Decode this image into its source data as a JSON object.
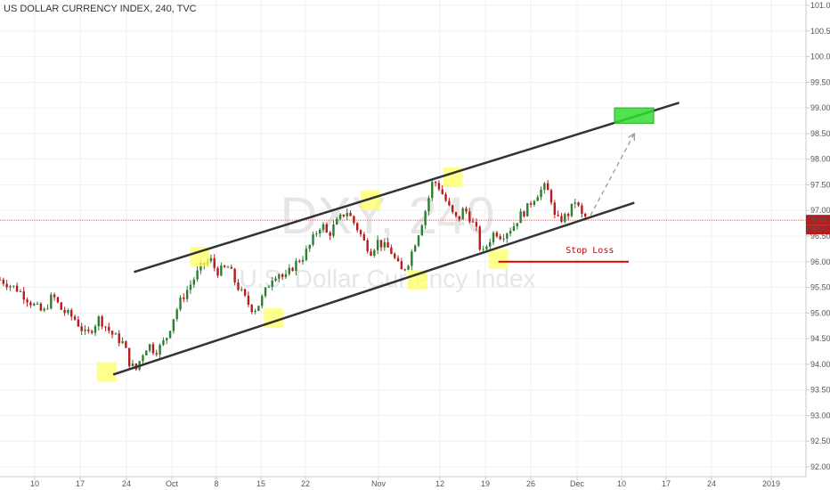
{
  "header": {
    "title": "US DOLLAR CURRENCY INDEX, 240, TVC"
  },
  "watermark": {
    "symbol": "DXY, 240",
    "name": "U.S. Dollar Currency Index"
  },
  "price_labels": {
    "current": "96.81",
    "countdown": "03:57:36"
  },
  "annotations": {
    "stop_loss": "Stop Loss"
  },
  "colors": {
    "up_candle": "#2e7d32",
    "down_candle": "#b71c1c",
    "channel": "#333333",
    "highlight": "#ffff66",
    "target": "#33dd33",
    "stop_loss": "#e00000",
    "price_line": "#e06060"
  },
  "chart_data": {
    "type": "candlestick",
    "y_axis": {
      "min": 92.0,
      "max": 101.0,
      "ticks": [
        "92.00",
        "92.50",
        "93.00",
        "93.50",
        "94.00",
        "94.50",
        "95.00",
        "95.50",
        "96.00",
        "96.50",
        "97.00",
        "97.50",
        "98.00",
        "98.50",
        "99.00",
        "99.50",
        "100.00",
        "100.50",
        "101.00"
      ]
    },
    "x_axis": {
      "ticks": [
        "10",
        "17",
        "24",
        "Oct",
        "8",
        "15",
        "22",
        "Nov",
        "12",
        "19",
        "26",
        "Dec",
        "10",
        "17",
        "24",
        "2019"
      ]
    },
    "series": [
      {
        "close_path": [
          [
            0,
            95.65
          ],
          [
            3,
            95.45
          ],
          [
            5,
            95.2
          ],
          [
            7,
            95.0
          ],
          [
            8.5,
            95.35
          ],
          [
            10,
            95.05
          ],
          [
            12,
            94.9
          ],
          [
            14,
            94.55
          ],
          [
            16,
            94.9
          ],
          [
            18,
            94.6
          ],
          [
            20,
            94.4
          ],
          [
            21,
            94.0
          ],
          [
            22,
            93.9
          ],
          [
            23,
            94.2
          ],
          [
            24,
            94.4
          ],
          [
            25,
            94.25
          ],
          [
            26,
            94.35
          ],
          [
            27,
            94.55
          ],
          [
            28,
            94.9
          ],
          [
            29,
            95.2
          ],
          [
            30,
            95.4
          ],
          [
            31,
            95.6
          ],
          [
            32.5,
            95.9
          ],
          [
            34,
            96.05
          ],
          [
            35,
            95.8
          ],
          [
            36,
            95.85
          ],
          [
            37,
            95.9
          ],
          [
            38,
            95.6
          ],
          [
            39,
            95.4
          ],
          [
            40,
            95.2
          ],
          [
            41,
            95.05
          ],
          [
            42,
            95.2
          ],
          [
            43,
            95.45
          ],
          [
            44,
            95.7
          ],
          [
            45,
            95.8
          ],
          [
            46,
            95.65
          ],
          [
            47,
            95.85
          ],
          [
            48,
            96.0
          ],
          [
            49,
            96.1
          ],
          [
            50,
            96.3
          ],
          [
            51,
            96.55
          ],
          [
            52,
            96.75
          ],
          [
            53,
            96.5
          ],
          [
            54,
            96.7
          ],
          [
            55,
            96.85
          ],
          [
            56,
            97.0
          ],
          [
            57,
            96.8
          ],
          [
            58,
            96.6
          ],
          [
            59,
            96.35
          ],
          [
            60,
            96.2
          ],
          [
            61,
            96.4
          ],
          [
            62,
            96.3
          ],
          [
            63,
            96.25
          ],
          [
            64,
            96.0
          ],
          [
            65,
            95.8
          ],
          [
            66,
            96.0
          ],
          [
            67,
            96.35
          ],
          [
            68,
            96.7
          ],
          [
            69,
            97.1
          ],
          [
            70,
            97.6
          ],
          [
            71,
            97.45
          ],
          [
            72,
            97.2
          ],
          [
            73,
            96.95
          ],
          [
            74,
            96.8
          ],
          [
            75,
            97.05
          ],
          [
            76,
            96.85
          ],
          [
            77,
            96.6
          ],
          [
            77.5,
            96.3
          ],
          [
            78,
            96.15
          ],
          [
            79,
            96.4
          ],
          [
            80,
            96.6
          ],
          [
            81,
            96.5
          ],
          [
            82,
            96.6
          ],
          [
            83,
            96.7
          ],
          [
            84,
            96.9
          ],
          [
            85,
            97.0
          ],
          [
            86,
            97.2
          ],
          [
            87,
            97.35
          ],
          [
            88,
            97.45
          ],
          [
            89,
            97.3
          ],
          [
            89.5,
            96.9
          ],
          [
            90,
            96.8
          ],
          [
            91,
            96.85
          ],
          [
            92,
            96.95
          ],
          [
            93,
            97.2
          ],
          [
            94,
            96.9
          ],
          [
            95,
            96.85
          ]
        ]
      }
    ],
    "channel": {
      "upper": {
        "from": [
          "Sep 25",
          95.8
        ],
        "to": [
          "Dec 19",
          99.1
        ]
      },
      "lower": {
        "from": [
          "Sep 22",
          93.8
        ],
        "to": [
          "Dec 12",
          97.15
        ]
      }
    },
    "highlighted_pivots": [
      {
        "date": "Sep 21",
        "price": 93.85,
        "kind": "low"
      },
      {
        "date": "Oct 5",
        "price": 96.1,
        "kind": "high"
      },
      {
        "date": "Oct 17",
        "price": 94.9,
        "kind": "low"
      },
      {
        "date": "Oct 30",
        "price": 97.2,
        "kind": "high"
      },
      {
        "date": "Nov 7",
        "price": 95.65,
        "kind": "low"
      },
      {
        "date": "Nov 13",
        "price": 97.65,
        "kind": "high"
      },
      {
        "date": "Nov 20",
        "price": 96.05,
        "kind": "low"
      }
    ],
    "target_zone": {
      "from": 98.7,
      "to": 99.0
    },
    "stop_loss_level": 96.0,
    "current_price": 96.81
  }
}
